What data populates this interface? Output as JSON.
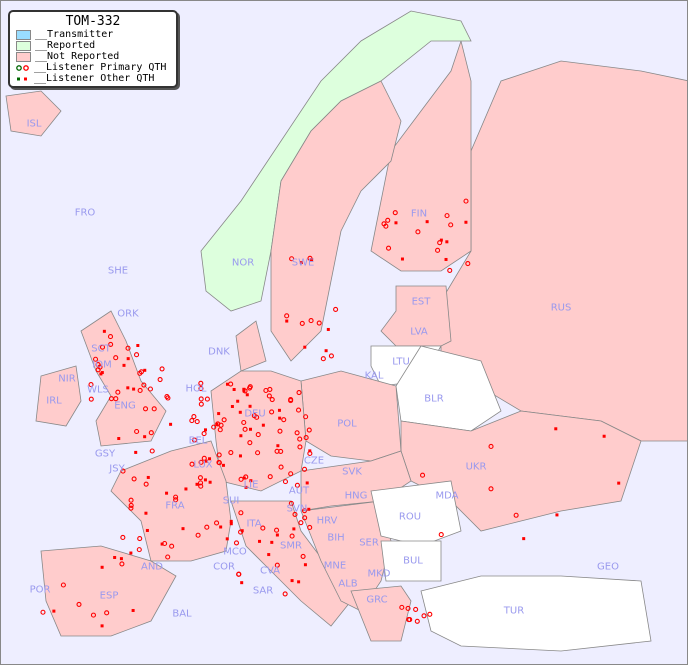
{
  "legend": {
    "title": "TOM-332",
    "items": [
      {
        "label": "__Transmitter",
        "color": "#99ddff"
      },
      {
        "label": "__Reported",
        "color": "#ddffdd"
      },
      {
        "label": "__Not Reported",
        "color": "#ffcccc"
      },
      {
        "label": "__Listener Primary QTH",
        "marker": "circle"
      },
      {
        "label": "__Listener Other QTH",
        "marker": "square"
      }
    ]
  },
  "colors": {
    "sea": "#eeeeff",
    "reported": "#ddffdd",
    "not_reported": "#ffcccc",
    "no_data": "#ffffff",
    "listener": "#ff0000",
    "label": "#9999ee"
  },
  "countries": [
    "ISL",
    "FRO",
    "SHE",
    "ORK",
    "NOR",
    "SWE",
    "FIN",
    "EST",
    "RUS",
    "LVA",
    "LTU",
    "KAL",
    "BLR",
    "DNK",
    "HOL",
    "DEU",
    "POL",
    "UKR",
    "IRL",
    "NIR",
    "SCT",
    "IOM",
    "WLS",
    "ENG",
    "GSY",
    "JSY",
    "BEL",
    "LUX",
    "CZE",
    "SVK",
    "FRA",
    "SUI",
    "LIE",
    "AUT",
    "HNG",
    "MDA",
    "ROU",
    "SVN",
    "HRV",
    "ITA",
    "BIH",
    "SER",
    "SMR",
    "MCO",
    "COR",
    "AND",
    "MNE",
    "BUL",
    "GEO",
    "MKD",
    "ALB",
    "CVA",
    "SAR",
    "POR",
    "ESP",
    "BAL",
    "GRC",
    "TUR"
  ]
}
